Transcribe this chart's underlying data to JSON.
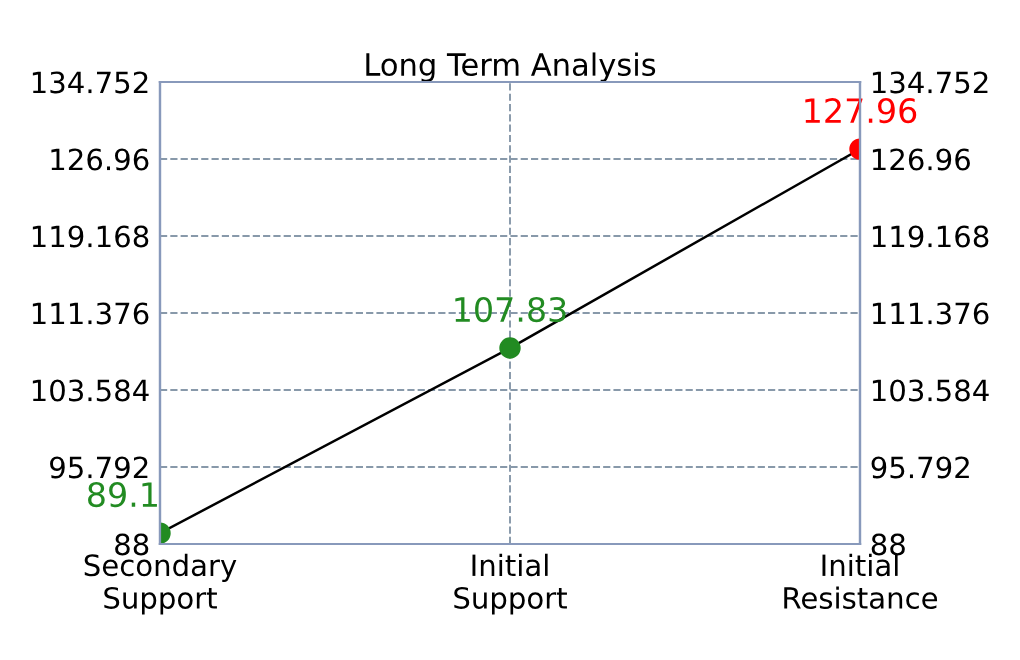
{
  "chart_data": {
    "type": "line",
    "title": "Long Term Analysis",
    "categories": [
      "Secondary\nSupport",
      "Initial\nSupport",
      "Initial\nResistance"
    ],
    "series": [
      {
        "color": "#000000",
        "colors": [
          "#228b22",
          "#228b22",
          "#ff0000"
        ],
        "values": [
          89.1,
          107.83,
          127.96
        ]
      }
    ],
    "ylim": [
      88,
      134.752
    ],
    "yticks": [
      88,
      95.792,
      103.584,
      111.376,
      119.168,
      126.96,
      134.752
    ],
    "y2lim": [
      88,
      134.752
    ],
    "y2ticks": [
      88,
      95.792,
      103.584,
      111.376,
      119.168,
      126.96,
      134.752
    ],
    "marker": "circle",
    "line_style": "solid",
    "grid": true,
    "data_labels": true
  }
}
